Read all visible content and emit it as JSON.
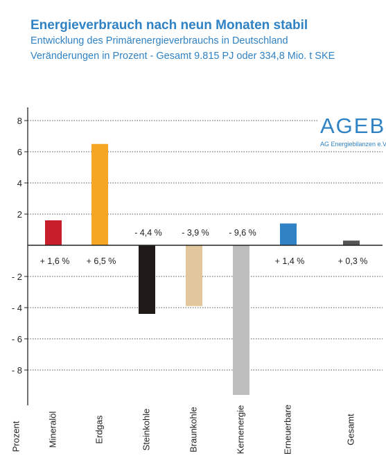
{
  "header": {
    "title": "Energieverbrauch nach neun Monaten stabil",
    "subtitle1": "Entwicklung des Primärenergieverbrauchs in Deutschland",
    "subtitle2": "Veränderungen in Prozent - Gesamt 9.815 PJ oder 334,8 Mio. t SKE"
  },
  "logo": {
    "main": "AGEB",
    "sub": "AG Energiebilanzen e.V."
  },
  "chart_data": {
    "type": "bar",
    "title": "Energieverbrauch nach neun Monaten stabil",
    "xlabel": "Prozent",
    "ylabel": "",
    "ylim": [
      -9.5,
      8.5
    ],
    "yticks": [
      8,
      6,
      4,
      2,
      -2,
      -4,
      -6,
      -8
    ],
    "ytick_labels": [
      "8",
      "6",
      "4",
      "2",
      "- 2",
      "- 4",
      "- 6",
      "- 8"
    ],
    "grid": true,
    "categories": [
      "Mineralöl",
      "Erdgas",
      "Steinkohle",
      "Braunkohle",
      "Kernenergie",
      "Erneuerbare",
      "Gesamt"
    ],
    "values": [
      1.6,
      6.5,
      -4.4,
      -3.9,
      -9.6,
      1.4,
      0.3
    ],
    "labels": [
      "+ 1,6 %",
      "+ 6,5 %",
      "- 4,4 %",
      "- 3,9 %",
      "- 9,6 %",
      "+ 1,4 %",
      "+ 0,3 %"
    ],
    "colors": [
      "#c81e2b",
      "#f5a623",
      "#1f1a17",
      "#e2c79c",
      "#bdbdbd",
      "#2f82c4",
      "#555555"
    ]
  }
}
